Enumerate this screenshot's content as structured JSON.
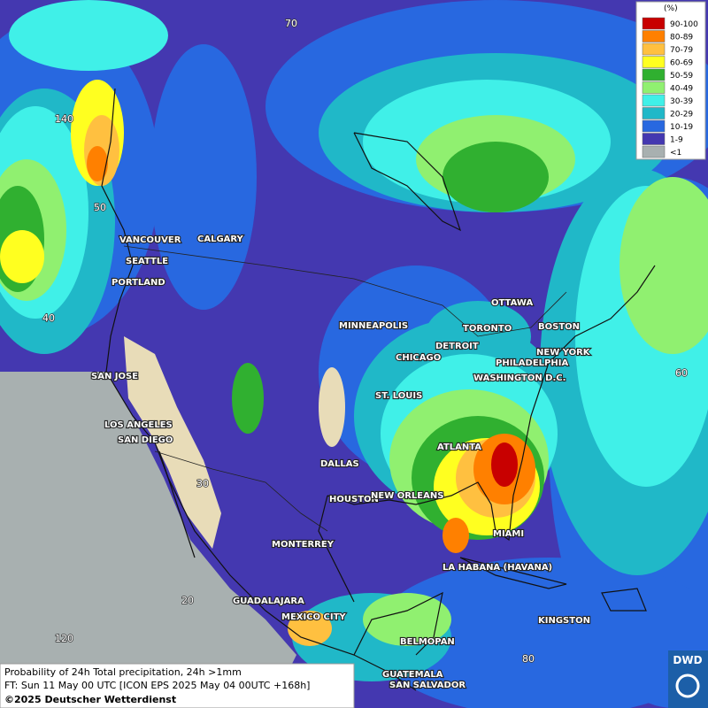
{
  "legend": {
    "title": "(%)",
    "items": [
      {
        "label": "90-100",
        "color": "#c80000"
      },
      {
        "label": "80-89",
        "color": "#ff8000"
      },
      {
        "label": "70-79",
        "color": "#ffc040"
      },
      {
        "label": "60-69",
        "color": "#ffff20"
      },
      {
        "label": "50-59",
        "color": "#30b030"
      },
      {
        "label": "40-49",
        "color": "#90f070"
      },
      {
        "label": "30-39",
        "color": "#40f0e8"
      },
      {
        "label": "20-29",
        "color": "#20b8c8"
      },
      {
        "label": "10-19",
        "color": "#2868e0"
      },
      {
        "label": "1-9",
        "color": "#4438b0"
      },
      {
        "label": "<1",
        "color": "#a8b0b0"
      }
    ]
  },
  "grid_labels": [
    "70",
    "140",
    "50",
    "40",
    "30",
    "20",
    "120",
    "60",
    "80"
  ],
  "cities": [
    "VANCOUVER",
    "CALGARY",
    "SEATTLE",
    "PORTLAND",
    "MINNEAPOLIS",
    "OTTAWA",
    "TORONTO",
    "BOSTON",
    "DETROIT",
    "NEW YORK",
    "CHICAGO",
    "PHILADELPHIA",
    "WASHINGTON D.C.",
    "ST. LOUIS",
    "SAN JOSE",
    "LOS ANGELES",
    "SAN DIEGO",
    "ATLANTA",
    "DALLAS",
    "HOUSTON",
    "NEW ORLEANS",
    "MIAMI",
    "MONTERREY",
    "LA HABANA (HAVANA)",
    "GUADALAJARA",
    "MEXICO CITY",
    "KINGSTON",
    "BELMOPAN",
    "GUATEMALA",
    "SAN SALVADOR"
  ],
  "caption": [
    "Probability of 24h Total precipitation, 24h >1mm",
    "FT: Sun 11 May 00 UTC [ICON EPS 2025 May 04 00UTC +168h]",
    "©2025 Deutscher Wetterdienst"
  ],
  "logo": "DWD"
}
